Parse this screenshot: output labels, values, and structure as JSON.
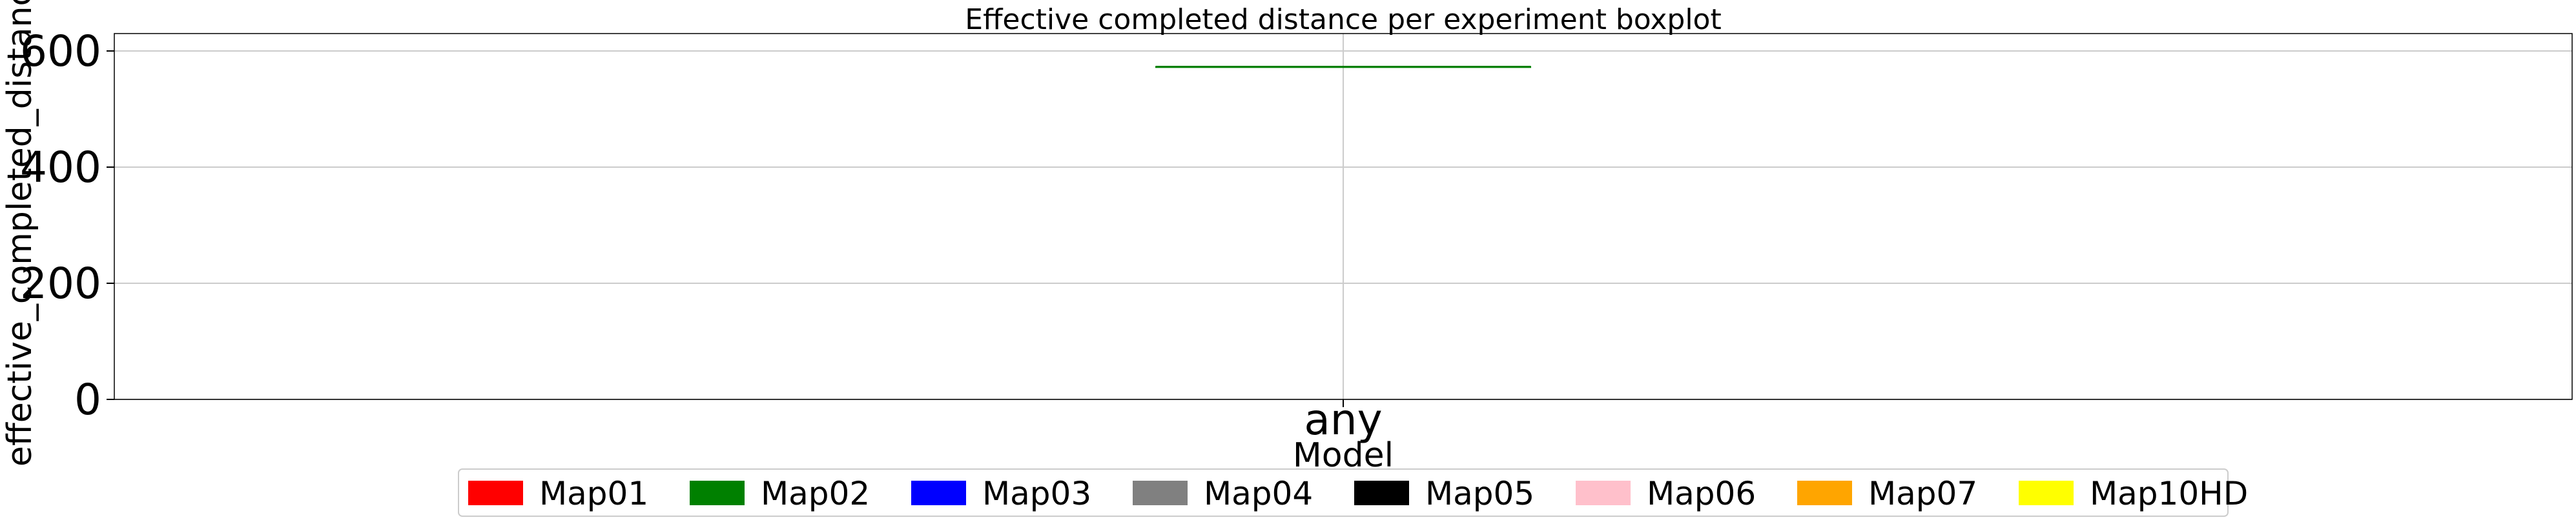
{
  "chart_data": {
    "type": "box",
    "title": "Effective completed distance per experiment boxplot",
    "xlabel": "Model",
    "ylabel": "effective_completed_distance",
    "categories": [
      "any"
    ],
    "ylim": [
      0,
      630
    ],
    "yticks": [
      0,
      200,
      400,
      600
    ],
    "grid": true,
    "series": [
      {
        "name": "Map02",
        "category": "any",
        "min": 573,
        "q1": 573,
        "median": 573,
        "q3": 573,
        "max": 573,
        "color": "#008000"
      }
    ],
    "legend": {
      "placement": "bottom-center",
      "entries": [
        {
          "name": "Map01",
          "color": "#ff0000"
        },
        {
          "name": "Map02",
          "color": "#008000"
        },
        {
          "name": "Map03",
          "color": "#0000ff"
        },
        {
          "name": "Map04",
          "color": "#808080"
        },
        {
          "name": "Map05",
          "color": "#000000"
        },
        {
          "name": "Map06",
          "color": "#ffc0cb"
        },
        {
          "name": "Map07",
          "color": "#ffa500"
        },
        {
          "name": "Map10HD",
          "color": "#ffff00"
        }
      ]
    }
  }
}
